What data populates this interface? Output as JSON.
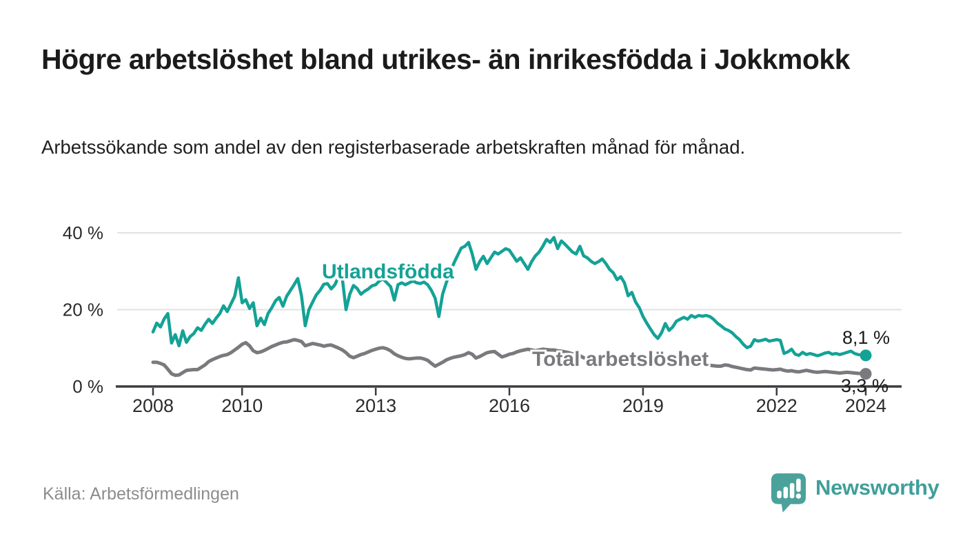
{
  "header": {
    "title": "Högre arbetslöshet bland utrikes- än inrikesfödda i Jokkmokk",
    "subtitle": "Arbetssökande som andel av den registerbaserade arbetskraften månad för månad."
  },
  "footer": {
    "source": "Källa: Arbetsförmedlingen",
    "brand": "Newsworthy"
  },
  "colors": {
    "series_foreign_born": "#14a296",
    "series_total": "#7a7a7e",
    "grid": "#e2e2e2",
    "axis": "#3c3c40",
    "tick_text": "#2b2b2b",
    "title_text": "#1b1b1b",
    "source_text": "#8c8c8c",
    "logo": "#4ba29b"
  },
  "chart_data": {
    "type": "line",
    "x_unit": "month",
    "x_start_year": 2008,
    "x_end_year": 2024,
    "x_ticks": [
      2008,
      2010,
      2013,
      2016,
      2019,
      2022,
      2024
    ],
    "y_ticks": [
      0,
      20,
      40
    ],
    "y_tick_suffix": " %",
    "ylim": [
      0,
      40
    ],
    "grid": true,
    "legend_position": "inline-labels",
    "series": [
      {
        "name": "Utlandsfödda",
        "color": "#14a296",
        "end_label": "8,1 %",
        "end_value": 8.1,
        "values": [
          14.2,
          16.5,
          15.5,
          17.6,
          19.0,
          11.3,
          13.5,
          10.6,
          14.5,
          11.5,
          13.0,
          13.8,
          15.3,
          14.6,
          16.2,
          17.5,
          16.4,
          17.8,
          19.0,
          21.0,
          19.5,
          21.5,
          23.5,
          28.3,
          21.8,
          22.6,
          20.3,
          21.8,
          15.8,
          17.8,
          16.1,
          19.0,
          20.5,
          22.3,
          23.2,
          20.9,
          23.5,
          25.0,
          26.5,
          28.1,
          23.6,
          15.8,
          20.0,
          22.0,
          23.9,
          25.0,
          26.6,
          26.8,
          25.4,
          26.5,
          28.7,
          28.0,
          20.0,
          24.0,
          26.3,
          25.5,
          24.0,
          24.8,
          25.4,
          26.2,
          26.5,
          27.5,
          28.0,
          27.0,
          26.0,
          22.5,
          26.5,
          27.0,
          26.5,
          27.0,
          27.5,
          27.0,
          26.8,
          27.2,
          26.5,
          25.0,
          23.0,
          18.2,
          24.0,
          27.0,
          29.5,
          32.0,
          34.0,
          36.0,
          36.5,
          37.5,
          34.5,
          30.5,
          32.5,
          33.9,
          32.0,
          33.5,
          35.0,
          34.5,
          35.2,
          35.9,
          35.5,
          34.0,
          32.6,
          33.5,
          32.0,
          30.5,
          32.5,
          34.0,
          35.0,
          36.5,
          38.3,
          37.5,
          38.8,
          35.9,
          37.9,
          37.0,
          36.0,
          35.0,
          34.5,
          36.5,
          34.0,
          33.5,
          32.6,
          32.0,
          32.5,
          33.2,
          32.0,
          30.5,
          29.6,
          27.8,
          28.6,
          27.0,
          23.6,
          24.5,
          22.0,
          20.5,
          18.2,
          16.5,
          15.0,
          13.5,
          12.5,
          14.0,
          16.4,
          14.6,
          15.5,
          17.0,
          17.5,
          18.0,
          17.5,
          18.5,
          18.0,
          18.5,
          18.3,
          18.5,
          18.2,
          17.5,
          16.5,
          15.8,
          15.0,
          14.6,
          14.0,
          13.0,
          12.2,
          11.0,
          10.1,
          10.5,
          12.2,
          11.8,
          12.0,
          12.3,
          11.8,
          12.0,
          12.2,
          12.0,
          8.6,
          9.0,
          9.7,
          8.4,
          8.1,
          8.9,
          8.3,
          8.6,
          8.3,
          8.0,
          8.3,
          8.7,
          8.9,
          8.4,
          8.6,
          8.3,
          8.6,
          8.9,
          9.2,
          8.6,
          8.3,
          8.2,
          8.1
        ]
      },
      {
        "name": "Total arbetslöshet",
        "color": "#7a7a7e",
        "end_label": "3,3 %",
        "end_value": 3.3,
        "values": [
          6.3,
          6.3,
          6.0,
          5.6,
          4.5,
          3.3,
          2.9,
          3.0,
          3.6,
          4.2,
          4.3,
          4.4,
          4.4,
          5.0,
          5.6,
          6.5,
          7.0,
          7.4,
          7.8,
          8.1,
          8.3,
          8.8,
          9.5,
          10.2,
          11.0,
          11.4,
          10.6,
          9.3,
          8.8,
          9.0,
          9.4,
          9.9,
          10.4,
          10.8,
          11.2,
          11.5,
          11.6,
          11.9,
          12.2,
          12.0,
          11.7,
          10.6,
          10.9,
          11.2,
          11.0,
          10.8,
          10.5,
          10.7,
          10.8,
          10.4,
          10.0,
          9.5,
          8.8,
          7.9,
          7.5,
          7.9,
          8.3,
          8.6,
          9.0,
          9.4,
          9.7,
          10.0,
          10.1,
          9.8,
          9.3,
          8.5,
          8.0,
          7.6,
          7.3,
          7.2,
          7.3,
          7.4,
          7.4,
          7.2,
          6.8,
          6.0,
          5.3,
          5.8,
          6.3,
          6.9,
          7.3,
          7.6,
          7.8,
          8.0,
          8.3,
          8.8,
          8.4,
          7.4,
          7.8,
          8.3,
          8.8,
          9.0,
          9.1,
          8.4,
          7.7,
          8.0,
          8.4,
          8.6,
          9.0,
          9.3,
          9.5,
          9.7,
          9.5,
          9.3,
          9.5,
          9.7,
          9.6,
          9.5,
          9.5,
          9.3,
          9.2,
          9.0,
          8.8,
          8.5,
          8.3,
          8.0,
          7.5,
          7.0,
          6.5,
          6.3,
          6.8,
          7.3,
          7.6,
          7.8,
          7.9,
          7.8,
          7.7,
          7.5,
          7.3,
          7.2,
          7.0,
          6.9,
          6.8,
          6.6,
          6.5,
          6.3,
          6.1,
          6.0,
          6.3,
          6.1,
          5.9,
          5.8,
          5.8,
          5.7,
          5.7,
          5.8,
          5.8,
          5.7,
          5.6,
          5.6,
          5.5,
          5.4,
          5.3,
          5.3,
          5.6,
          5.5,
          5.2,
          5.0,
          4.8,
          4.6,
          4.4,
          4.3,
          4.8,
          4.7,
          4.6,
          4.5,
          4.4,
          4.3,
          4.4,
          4.5,
          4.2,
          4.0,
          4.1,
          3.9,
          3.8,
          4.0,
          4.2,
          4.0,
          3.8,
          3.7,
          3.8,
          3.9,
          3.8,
          3.7,
          3.6,
          3.5,
          3.6,
          3.7,
          3.6,
          3.5,
          3.4,
          3.4,
          3.3
        ]
      }
    ]
  }
}
